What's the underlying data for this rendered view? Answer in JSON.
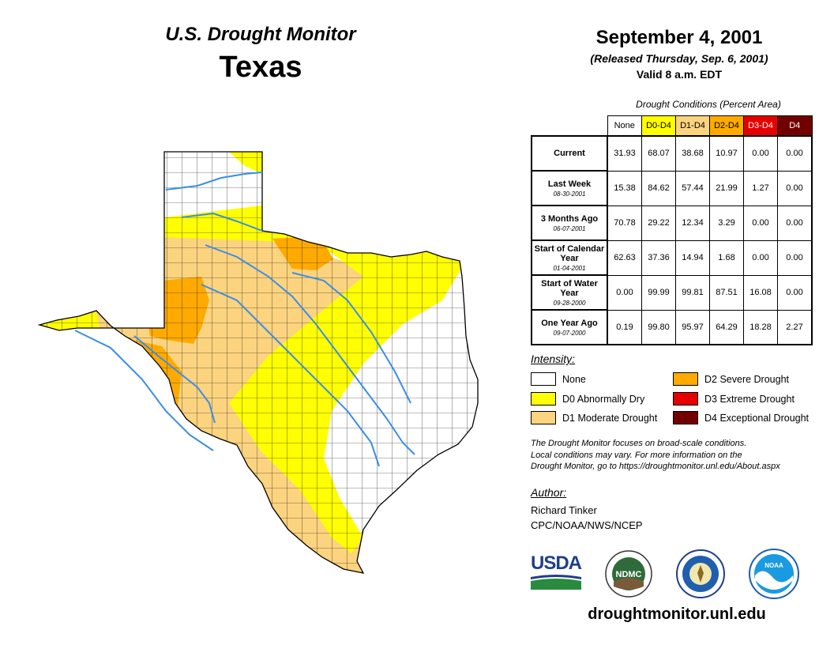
{
  "header": {
    "program": "U.S. Drought Monitor",
    "state": "Texas",
    "date": "September 4, 2001",
    "released": "(Released Thursday, Sep. 6, 2001)",
    "valid": "Valid 8 a.m. EDT"
  },
  "table": {
    "caption": "Drought Conditions (Percent Area)",
    "columns": [
      "None",
      "D0-D4",
      "D1-D4",
      "D2-D4",
      "D3-D4",
      "D4"
    ],
    "rows": [
      {
        "label": "Current",
        "sub": "",
        "values": [
          "31.93",
          "68.07",
          "38.68",
          "10.97",
          "0.00",
          "0.00"
        ]
      },
      {
        "label": "Last Week",
        "sub": "08-30-2001",
        "values": [
          "15.38",
          "84.62",
          "57.44",
          "21.99",
          "1.27",
          "0.00"
        ]
      },
      {
        "label": "3 Months Ago",
        "sub": "06-07-2001",
        "values": [
          "70.78",
          "29.22",
          "12.34",
          "3.29",
          "0.00",
          "0.00"
        ]
      },
      {
        "label": "Start of Calendar Year",
        "sub": "01-04-2001",
        "values": [
          "62.63",
          "37.36",
          "14.94",
          "1.68",
          "0.00",
          "0.00"
        ]
      },
      {
        "label": "Start of Water Year",
        "sub": "09-28-2000",
        "values": [
          "0.00",
          "99.99",
          "99.81",
          "87.51",
          "16.08",
          "0.00"
        ]
      },
      {
        "label": "One Year Ago",
        "sub": "09-07-2000",
        "values": [
          "0.19",
          "99.80",
          "95.97",
          "64.29",
          "18.28",
          "2.27"
        ]
      }
    ]
  },
  "legend": {
    "title": "Intensity:",
    "items": [
      {
        "label": "None",
        "color": "#ffffff"
      },
      {
        "label": "D0 Abnormally Dry",
        "color": "#ffff00"
      },
      {
        "label": "D1 Moderate Drought",
        "color": "#fcd37f"
      },
      {
        "label": "D2 Severe Drought",
        "color": "#ffaa00"
      },
      {
        "label": "D3 Extreme Drought",
        "color": "#e60000"
      },
      {
        "label": "D4 Exceptional Drought",
        "color": "#730000"
      }
    ]
  },
  "note": {
    "line1": "The Drought Monitor focuses on broad-scale conditions.",
    "line2": "Local conditions may vary. For more information on the",
    "line3": "Drought Monitor, go to https://droughtmonitor.unl.edu/About.aspx"
  },
  "author": {
    "title": "Author:",
    "name": "Richard Tinker",
    "org": "CPC/NOAA/NWS/NCEP"
  },
  "logos": {
    "usda": "USDA",
    "ndmc": "NDMC",
    "noaa": "NOAA"
  },
  "website": "droughtmonitor.unl.edu",
  "map_colors": {
    "none": "#ffffff",
    "d0": "#ffff00",
    "d1": "#fcd37f",
    "d2": "#ffaa00",
    "river": "#3a8ee6",
    "county": "#000000"
  }
}
